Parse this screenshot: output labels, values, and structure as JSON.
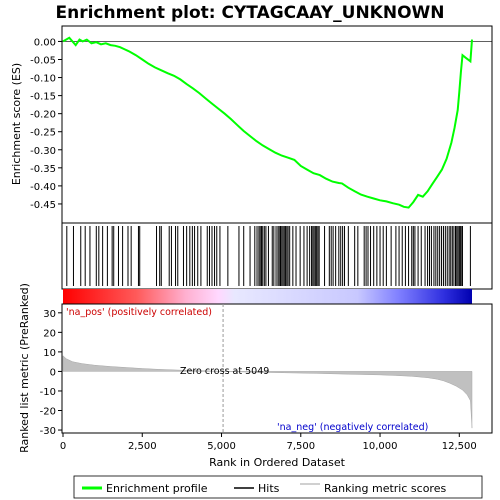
{
  "chart_data": {
    "type": "line",
    "title": "Enrichment plot: CYTAGCAAY_UNKNOWN",
    "top_panel": {
      "ylabel": "Enrichment score (ES)",
      "ylim": [
        -0.5,
        0.04
      ],
      "yticks": [
        0.0,
        -0.05,
        -0.1,
        -0.15,
        -0.2,
        -0.25,
        -0.3,
        -0.35,
        -0.4,
        -0.45
      ],
      "ytick_labels": [
        "0.00",
        "-0.05",
        "-0.10",
        "-0.15",
        "-0.20",
        "-0.25",
        "-0.30",
        "-0.35",
        "-0.40",
        "-0.45"
      ],
      "series": [
        {
          "name": "Enrichment profile",
          "color": "#00ff00",
          "x": [
            0,
            200,
            400,
            520,
            620,
            750,
            900,
            1050,
            1200,
            1350,
            1500,
            1650,
            1800,
            1950,
            2100,
            2300,
            2500,
            2700,
            2900,
            3100,
            3300,
            3500,
            3700,
            3900,
            4100,
            4300,
            4500,
            4700,
            4900,
            5100,
            5300,
            5500,
            5700,
            5900,
            6100,
            6300,
            6500,
            6700,
            6900,
            7100,
            7300,
            7500,
            7700,
            7900,
            8100,
            8300,
            8500,
            8700,
            8800,
            9000,
            9200,
            9400,
            9600,
            9800,
            10000,
            10200,
            10400,
            10600,
            10750,
            10900,
            11050,
            11200,
            11350,
            11500,
            11650,
            11800,
            11950,
            12100,
            12250,
            12350,
            12450,
            12500,
            12550,
            12600,
            12700,
            12850,
            12900
          ],
          "y": [
            0.0,
            0.01,
            -0.01,
            0.005,
            0.0,
            0.005,
            -0.005,
            -0.002,
            -0.008,
            -0.005,
            -0.01,
            -0.012,
            -0.016,
            -0.022,
            -0.028,
            -0.038,
            -0.05,
            -0.062,
            -0.072,
            -0.08,
            -0.088,
            -0.095,
            -0.105,
            -0.118,
            -0.13,
            -0.143,
            -0.158,
            -0.172,
            -0.186,
            -0.2,
            -0.215,
            -0.232,
            -0.248,
            -0.262,
            -0.276,
            -0.288,
            -0.298,
            -0.308,
            -0.316,
            -0.322,
            -0.328,
            -0.345,
            -0.355,
            -0.365,
            -0.37,
            -0.38,
            -0.388,
            -0.392,
            -0.393,
            -0.405,
            -0.415,
            -0.424,
            -0.43,
            -0.435,
            -0.44,
            -0.443,
            -0.448,
            -0.452,
            -0.458,
            -0.46,
            -0.445,
            -0.425,
            -0.43,
            -0.415,
            -0.395,
            -0.375,
            -0.355,
            -0.325,
            -0.28,
            -0.24,
            -0.19,
            -0.14,
            -0.085,
            -0.038,
            -0.045,
            -0.055,
            0.005
          ]
        }
      ]
    },
    "hits": {
      "name": "Hits",
      "x": [
        120,
        330,
        560,
        700,
        850,
        1050,
        1130,
        1250,
        1400,
        1550,
        1600,
        1750,
        1880,
        2050,
        2150,
        2380,
        2420,
        2950,
        3050,
        3100,
        3350,
        3420,
        3550,
        3620,
        3800,
        3900,
        4000,
        4080,
        4150,
        4250,
        4350,
        4550,
        4620,
        4700,
        4780,
        4850,
        4950,
        5200,
        5550,
        5700,
        5900,
        6050,
        6120,
        6180,
        6220,
        6260,
        6300,
        6350,
        6400,
        6480,
        6600,
        6650,
        6720,
        6780,
        6820,
        6860,
        6900,
        6940,
        6980,
        7020,
        7060,
        7100,
        7150,
        7250,
        7350,
        7480,
        7600,
        7700,
        7780,
        7840,
        7880,
        7920,
        7960,
        8000,
        8040,
        8080,
        8250,
        8400,
        8460,
        8520,
        8600,
        8700,
        8760,
        8820,
        8880,
        9000,
        9200,
        9300,
        9500,
        9560,
        9620,
        9700,
        9800,
        9900,
        10000,
        10100,
        10200,
        10350,
        10500,
        10600,
        10700,
        10800,
        10900,
        11000,
        11050,
        11100,
        11200,
        11300,
        11420,
        11500,
        11560,
        11620,
        11700,
        11760,
        11820,
        11880,
        11940,
        12000,
        12060,
        12120,
        12180,
        12230,
        12280,
        12330,
        12380,
        12420,
        12460,
        12500,
        12530,
        12560,
        12600,
        12850
      ]
    },
    "bottom_panel": {
      "xlabel": "Rank in Ordered Dataset",
      "ylabel": "Ranked list metric (PreRanked)",
      "ylim": [
        -31,
        34
      ],
      "yticks": [
        30,
        20,
        10,
        0,
        -10,
        -20,
        -30
      ],
      "xlim": [
        0,
        13500
      ],
      "xticks": [
        0,
        2500,
        5000,
        7500,
        10000,
        12500
      ],
      "xtick_labels": [
        "0",
        "2,500",
        "5,000",
        "7,500",
        "10,000",
        "12,500"
      ],
      "metric_x": [
        0,
        100,
        300,
        600,
        1000,
        1500,
        2000,
        2500,
        3000,
        3500,
        4000,
        4500,
        5049,
        5500,
        6000,
        7000,
        8000,
        9000,
        10000,
        10500,
        11000,
        11500,
        11800,
        12000,
        12200,
        12400,
        12600,
        12750,
        12850,
        12900
      ],
      "metric_y": [
        8.0,
        6.5,
        5.0,
        4.0,
        3.2,
        2.5,
        2.0,
        1.5,
        1.1,
        0.8,
        0.5,
        0.3,
        0.0,
        -0.2,
        -0.4,
        -0.7,
        -1.0,
        -1.4,
        -1.8,
        -2.1,
        -2.5,
        -3.2,
        -4.0,
        -4.8,
        -6.0,
        -7.5,
        -9.5,
        -12.0,
        -15.0,
        -29.0
      ],
      "zero_cross_label": "Zero cross at 5049",
      "zero_cross_x": 5049,
      "pos_label": "'na_pos' (positively correlated)",
      "neg_label": "'na_neg' (negatively correlated)"
    },
    "legend": {
      "placement": "bottom",
      "entries": [
        {
          "label": "Enrichment profile",
          "color": "#00ff00"
        },
        {
          "label": "Hits",
          "color": "#000000"
        },
        {
          "label": "Ranking metric scores",
          "color": "#c0c0c0"
        }
      ]
    },
    "colors": {
      "profile": "#00ff00",
      "metric_fill": "#c0c0c0",
      "pos_text": "#cc0000",
      "neg_text": "#0000cc"
    }
  }
}
